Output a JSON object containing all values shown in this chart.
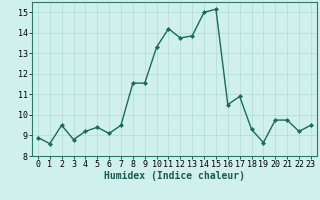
{
  "x": [
    0,
    1,
    2,
    3,
    4,
    5,
    6,
    7,
    8,
    9,
    10,
    11,
    12,
    13,
    14,
    15,
    16,
    17,
    18,
    19,
    20,
    21,
    22,
    23
  ],
  "y": [
    8.9,
    8.6,
    9.5,
    8.8,
    9.2,
    9.4,
    9.1,
    9.5,
    11.55,
    11.55,
    13.3,
    14.2,
    13.75,
    13.85,
    15.0,
    15.15,
    10.5,
    10.9,
    9.3,
    8.65,
    9.75,
    9.75,
    9.2,
    9.5
  ],
  "line_color": "#1a6b5a",
  "marker": "D",
  "markersize": 2.0,
  "linewidth": 1.0,
  "bg_color": "#cff0ec",
  "grid_color": "#b0ddd8",
  "xlabel": "Humidex (Indice chaleur)",
  "xlabel_fontsize": 7,
  "ylim": [
    8,
    15.5
  ],
  "xlim": [
    -0.5,
    23.5
  ],
  "yticks": [
    8,
    9,
    10,
    11,
    12,
    13,
    14,
    15
  ],
  "xticks": [
    0,
    1,
    2,
    3,
    4,
    5,
    6,
    7,
    8,
    9,
    10,
    11,
    12,
    13,
    14,
    15,
    16,
    17,
    18,
    19,
    20,
    21,
    22,
    23
  ],
  "tick_fontsize": 6.0
}
